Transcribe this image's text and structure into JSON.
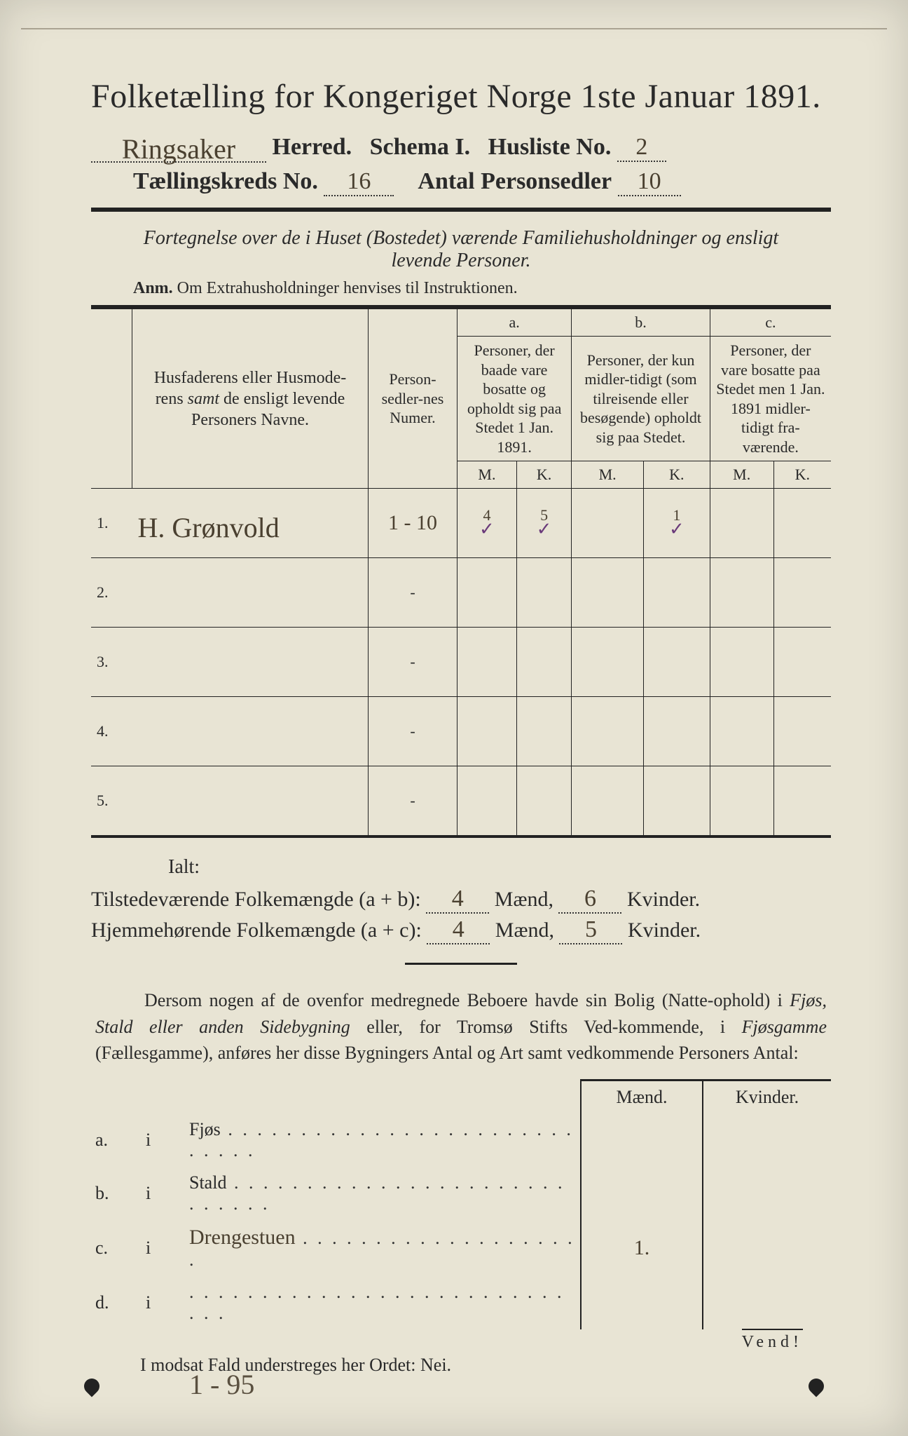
{
  "header": {
    "title": "Folketælling for Kongeriget Norge 1ste Januar 1891.",
    "herred_hw": "Ringsaker",
    "herred_lbl": "Herred.",
    "schema_lbl": "Schema I.",
    "husliste_lbl": "Husliste No.",
    "husliste_hw": "2",
    "kreds_lbl": "Tællingskreds No.",
    "kreds_hw": "16",
    "antal_lbl": "Antal Personsedler",
    "antal_hw": "10"
  },
  "subtitle": "Fortegnelse over de i Huset (Bostedet) værende Familiehusholdninger og ensligt levende Personer.",
  "anm_lbl": "Anm.",
  "anm_txt": "Om Extrahusholdninger henvises til Instruktionen.",
  "cols": {
    "name": "Husfaderens eller Husmoderens samt de ensligt levende Personers Navne.",
    "num": "Person-sedler-nes Numer.",
    "a_lbl": "a.",
    "a_txt": "Personer, der baade vare bosatte og opholdt sig paa Stedet 1 Jan. 1891.",
    "b_lbl": "b.",
    "b_txt": "Personer, der kun midler-tidigt (som tilreisende eller besøgende) opholdt sig paa Stedet.",
    "c_lbl": "c.",
    "c_txt": "Personer, der vare bosatte paa Stedet men 1 Jan. 1891 midler-tidigt fra-værende.",
    "M": "M.",
    "K": "K."
  },
  "rows": [
    {
      "n": "1.",
      "name": "H. Grønvold",
      "num": "1 - 10",
      "aM": "4",
      "aK": "5",
      "bM": "",
      "bK": "1",
      "cM": "",
      "cK": ""
    },
    {
      "n": "2.",
      "name": "",
      "num": "-",
      "aM": "",
      "aK": "",
      "bM": "",
      "bK": "",
      "cM": "",
      "cK": ""
    },
    {
      "n": "3.",
      "name": "",
      "num": "-",
      "aM": "",
      "aK": "",
      "bM": "",
      "bK": "",
      "cM": "",
      "cK": ""
    },
    {
      "n": "4.",
      "name": "",
      "num": "-",
      "aM": "",
      "aK": "",
      "bM": "",
      "bK": "",
      "cM": "",
      "cK": ""
    },
    {
      "n": "5.",
      "name": "",
      "num": "-",
      "aM": "",
      "aK": "",
      "bM": "",
      "bK": "",
      "cM": "",
      "cK": ""
    }
  ],
  "ialt": "Ialt:",
  "sum": {
    "l1a": "Tilstedeværende Folkemængde (a + b):",
    "l1m": "4",
    "mid": "Mænd,",
    "l1k": "6",
    "end": "Kvinder.",
    "l2a": "Hjemmehørende Folkemængde (a + c):",
    "l2m": "4",
    "l2k": "5"
  },
  "para": "Dersom nogen af de ovenfor medregnede Beboere havde sin Bolig (Natte-ophold) i Fjøs, Stald eller anden Sidebygning eller, for Tromsø Stifts Ved-kommende, i Fjøsgamme (Fællesgamme), anføres her disse Bygningers Antal og Art samt vedkommende Personers Antal:",
  "fjos": {
    "h1": "Mænd.",
    "h2": "Kvinder.",
    "rows": [
      {
        "k": "a.",
        "pre": "i",
        "lbl": "Fjøs",
        "m": "",
        "kv": ""
      },
      {
        "k": "b.",
        "pre": "i",
        "lbl": "Stald",
        "m": "",
        "kv": ""
      },
      {
        "k": "c.",
        "pre": "i",
        "lbl_hw": "Drengestuen",
        "m": "1.",
        "kv": ""
      },
      {
        "k": "d.",
        "pre": "i",
        "lbl": "",
        "m": "",
        "kv": ""
      }
    ]
  },
  "nei": "I modsat Fald understreges her Ordet: Nei.",
  "vend": "Vend!",
  "foot": "1 - 95"
}
